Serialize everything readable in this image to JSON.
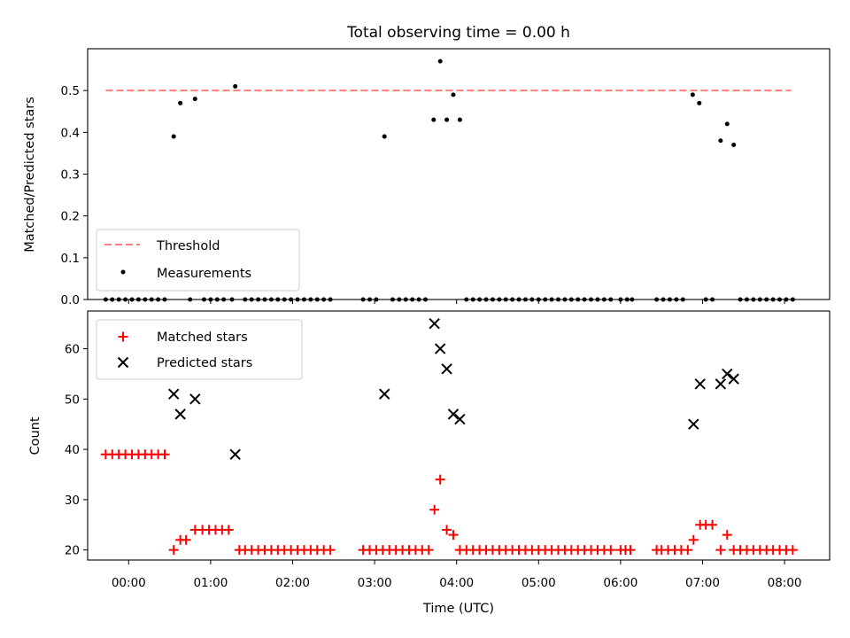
{
  "chart_data": {
    "title": "Total observing time = 0.00 h",
    "xlabel": "Time (UTC)",
    "x_unit": "hours UTC",
    "x_ticks": [
      0,
      1,
      2,
      3,
      4,
      5,
      6,
      7,
      8
    ],
    "x_tick_labels": [
      "00:00",
      "01:00",
      "02:00",
      "03:00",
      "04:00",
      "05:00",
      "06:00",
      "07:00",
      "08:00"
    ],
    "xlim": [
      -0.5,
      8.55
    ],
    "panels": [
      {
        "name": "top",
        "type": "scatter",
        "ylabel": "Matched/Predicted stars",
        "ylim": [
          0,
          0.6
        ],
        "y_ticks": [
          0,
          0.1,
          0.2,
          0.3,
          0.4,
          0.5
        ],
        "y_tick_labels": [
          "0.0",
          "0.1",
          "0.2",
          "0.3",
          "0.4",
          "0.5"
        ],
        "legend": {
          "placement": "lower-left",
          "entries": [
            "Threshold",
            "Measurements"
          ]
        },
        "threshold": {
          "name": "Threshold",
          "value": 0.5,
          "x_range": [
            -0.28,
            8.08
          ],
          "color": "#ff7f7f",
          "style": "dashed"
        },
        "measurements": {
          "name": "Measurements",
          "color": "#000000",
          "x": [
            -0.28,
            -0.2,
            -0.12,
            -0.04,
            0.04,
            0.12,
            0.2,
            0.28,
            0.36,
            0.44,
            0.55,
            0.63,
            0.75,
            0.81,
            0.92,
            1.0,
            1.08,
            1.16,
            1.26,
            1.3,
            1.42,
            1.5,
            1.58,
            1.66,
            1.74,
            1.82,
            1.9,
            1.98,
            2.06,
            2.14,
            2.22,
            2.3,
            2.38,
            2.46,
            2.86,
            2.94,
            3.02,
            3.12,
            3.22,
            3.3,
            3.38,
            3.46,
            3.54,
            3.62,
            3.72,
            3.8,
            3.88,
            3.96,
            4.04,
            4.12,
            4.2,
            4.28,
            4.36,
            4.44,
            4.52,
            4.6,
            4.68,
            4.76,
            4.84,
            4.92,
            5.0,
            5.08,
            5.16,
            5.24,
            5.32,
            5.4,
            5.48,
            5.56,
            5.64,
            5.72,
            5.8,
            5.88,
            6.0,
            6.08,
            6.14,
            6.44,
            6.52,
            6.6,
            6.68,
            6.76,
            6.88,
            6.96,
            7.04,
            7.12,
            7.22,
            7.3,
            7.38,
            7.46,
            7.54,
            7.62,
            7.7,
            7.78,
            7.86,
            7.94,
            8.02,
            8.1
          ],
          "y": [
            0,
            0,
            0,
            0,
            0,
            0,
            0,
            0,
            0,
            0,
            0.39,
            0.47,
            0,
            0.48,
            0,
            0,
            0,
            0,
            0,
            0.51,
            0,
            0,
            0,
            0,
            0,
            0,
            0,
            0,
            0,
            0,
            0,
            0,
            0,
            0,
            0,
            0,
            0,
            0.39,
            0,
            0,
            0,
            0,
            0,
            0,
            0.43,
            0.57,
            0.43,
            0.49,
            0.43,
            0,
            0,
            0,
            0,
            0,
            0,
            0,
            0,
            0,
            0,
            0,
            0,
            0,
            0,
            0,
            0,
            0,
            0,
            0,
            0,
            0,
            0,
            0,
            0,
            0,
            0,
            0,
            0,
            0,
            0,
            0,
            0.49,
            0.47,
            0,
            0,
            0.38,
            0.42,
            0.37,
            0,
            0,
            0,
            0,
            0,
            0,
            0,
            0,
            0
          ]
        }
      },
      {
        "name": "bottom",
        "type": "scatter",
        "ylabel": "Count",
        "ylim": [
          18,
          67.5
        ],
        "y_ticks": [
          20,
          30,
          40,
          50,
          60
        ],
        "y_tick_labels": [
          "20",
          "30",
          "40",
          "50",
          "60"
        ],
        "legend": {
          "placement": "top-left",
          "entries": [
            "Matched stars",
            "Predicted stars"
          ]
        },
        "matched": {
          "name": "Matched stars",
          "color": "#ff0000",
          "marker": "+",
          "x": [
            -0.28,
            -0.2,
            -0.12,
            -0.04,
            0.04,
            0.12,
            0.2,
            0.28,
            0.36,
            0.44,
            0.55,
            0.63,
            0.7,
            0.81,
            0.9,
            0.98,
            1.06,
            1.14,
            1.22,
            1.35,
            1.42,
            1.5,
            1.58,
            1.66,
            1.74,
            1.82,
            1.9,
            1.98,
            2.06,
            2.14,
            2.22,
            2.3,
            2.38,
            2.46,
            2.86,
            2.94,
            3.02,
            3.1,
            3.18,
            3.26,
            3.34,
            3.42,
            3.5,
            3.58,
            3.66,
            3.73,
            3.8,
            3.88,
            3.96,
            4.04,
            4.12,
            4.2,
            4.28,
            4.36,
            4.44,
            4.52,
            4.6,
            4.68,
            4.76,
            4.84,
            4.92,
            5.0,
            5.08,
            5.16,
            5.24,
            5.32,
            5.4,
            5.48,
            5.56,
            5.64,
            5.72,
            5.8,
            5.88,
            6.0,
            6.06,
            6.12,
            6.44,
            6.5,
            6.58,
            6.66,
            6.74,
            6.82,
            6.89,
            6.97,
            7.04,
            7.12,
            7.22,
            7.3,
            7.38,
            7.46,
            7.54,
            7.62,
            7.7,
            7.78,
            7.86,
            7.94,
            8.02,
            8.1
          ],
          "y": [
            39,
            39,
            39,
            39,
            39,
            39,
            39,
            39,
            39,
            39,
            20,
            22,
            22,
            24,
            24,
            24,
            24,
            24,
            24,
            20,
            20,
            20,
            20,
            20,
            20,
            20,
            20,
            20,
            20,
            20,
            20,
            20,
            20,
            20,
            20,
            20,
            20,
            20,
            20,
            20,
            20,
            20,
            20,
            20,
            20,
            28,
            34,
            24,
            23,
            20,
            20,
            20,
            20,
            20,
            20,
            20,
            20,
            20,
            20,
            20,
            20,
            20,
            20,
            20,
            20,
            20,
            20,
            20,
            20,
            20,
            20,
            20,
            20,
            20,
            20,
            20,
            20,
            20,
            20,
            20,
            20,
            20,
            22,
            25,
            25,
            25,
            20,
            23,
            20,
            20,
            20,
            20,
            20,
            20,
            20,
            20,
            20,
            20
          ]
        },
        "predicted": {
          "name": "Predicted stars",
          "color": "#000000",
          "marker": "x",
          "x": [
            0.55,
            0.63,
            0.81,
            1.3,
            3.12,
            3.73,
            3.8,
            3.88,
            3.96,
            4.04,
            6.89,
            6.97,
            7.22,
            7.3,
            7.38
          ],
          "y": [
            51,
            47,
            50,
            39,
            51,
            65,
            60,
            56,
            47,
            46,
            45,
            53,
            53,
            55,
            54
          ]
        }
      }
    ]
  }
}
